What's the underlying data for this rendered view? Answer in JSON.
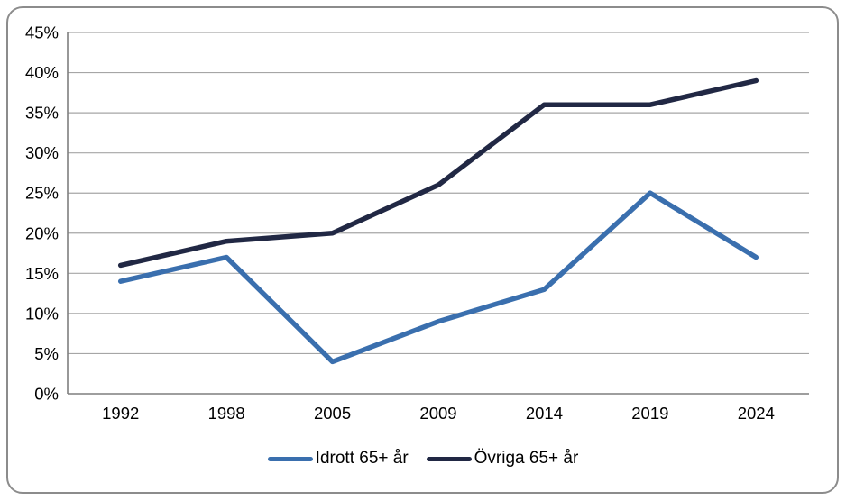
{
  "chart_data": {
    "type": "line",
    "title": "",
    "categories": [
      "1992",
      "1998",
      "2005",
      "2009",
      "2014",
      "2019",
      "2024"
    ],
    "series": [
      {
        "name": "Idrott 65+ år",
        "color": "#3A6FAE",
        "values": [
          14,
          17,
          4,
          9,
          13,
          25,
          17
        ]
      },
      {
        "name": "Övriga 65+ år",
        "color": "#212844",
        "values": [
          16,
          19,
          20,
          26,
          36,
          36,
          39
        ]
      }
    ],
    "xlabel": "",
    "ylabel": "",
    "ylim": [
      0,
      45
    ],
    "ytick_step": 5,
    "ytick_labels": [
      "0%",
      "5%",
      "10%",
      "15%",
      "20%",
      "25%",
      "30%",
      "35%",
      "40%",
      "45%"
    ],
    "grid": true,
    "legend_position": "bottom"
  },
  "colors": {
    "background": "#FFFFFF",
    "card_border": "#8C8C8C",
    "gridline": "#A6A6A6",
    "axis": "#7F7F7F",
    "text": "#000000"
  }
}
